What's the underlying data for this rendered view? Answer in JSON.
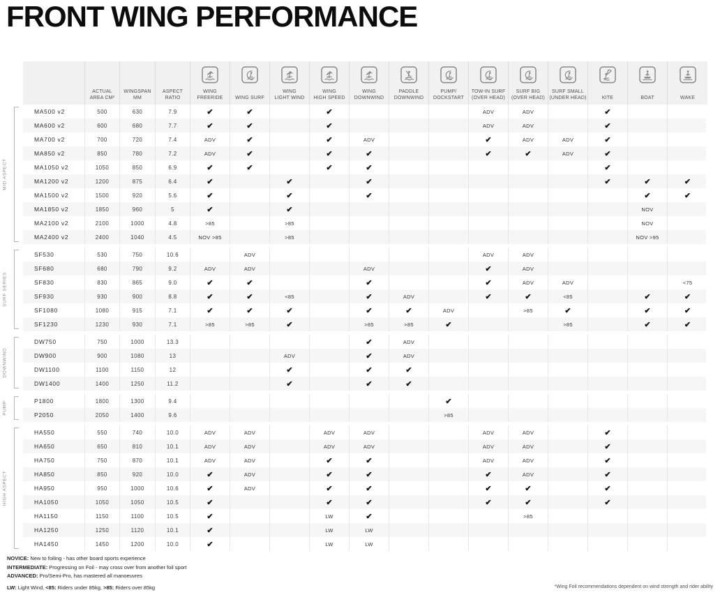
{
  "title": "FRONT WING PERFORMANCE",
  "colors": {
    "title": "#0c0c0c",
    "header_bg": "#f1f1f1",
    "row_stripe": "#f6f6f6",
    "grid_line": "#e6e6e6",
    "icon_gray": "#878787",
    "check": "#121212",
    "section_label": "#8d8d8d"
  },
  "table": {
    "numeric_columns": [
      {
        "lines": [
          "ACTUAL",
          "AREA CM²"
        ]
      },
      {
        "lines": [
          "WINGSPAN",
          "MM"
        ]
      },
      {
        "lines": [
          "ASPECT",
          "RATIO"
        ]
      }
    ],
    "discipline_columns": [
      {
        "lines": [
          "WING",
          "FREERIDE"
        ],
        "icon": "wing-freeride-icon"
      },
      {
        "lines": [
          "WING SURF"
        ],
        "icon": "wing-surf-icon"
      },
      {
        "lines": [
          "WING",
          "LIGHT WIND"
        ],
        "icon": "wing-light-wind-icon"
      },
      {
        "lines": [
          "WING",
          "HIGH SPEED"
        ],
        "icon": "wing-high-speed-icon"
      },
      {
        "lines": [
          "WING",
          "DOWNWIND"
        ],
        "icon": "wing-downwind-icon"
      },
      {
        "lines": [
          "PADDLE",
          "DOWNWIND"
        ],
        "icon": "paddle-downwind-icon"
      },
      {
        "lines": [
          "PUMP/",
          "DOCKSTART"
        ],
        "icon": "pump-dockstart-icon"
      },
      {
        "lines": [
          "TOW-IN SURF",
          "(OVER HEAD)"
        ],
        "icon": "tow-in-surf-icon"
      },
      {
        "lines": [
          "SURF BIG",
          "(OVER HEAD)"
        ],
        "icon": "surf-big-icon"
      },
      {
        "lines": [
          "SURF SMALL",
          "(UNDER HEAD)"
        ],
        "icon": "surf-small-icon"
      },
      {
        "lines": [
          "KITE"
        ],
        "icon": "kite-icon"
      },
      {
        "lines": [
          "BOAT"
        ],
        "icon": "boat-icon"
      },
      {
        "lines": [
          "WAKE"
        ],
        "icon": "wake-icon"
      }
    ],
    "sections": [
      {
        "label": "MID ASPECT",
        "rows": [
          {
            "model": "MA500 v2",
            "area": "500",
            "wingspan": "630",
            "aspect": "7.9",
            "cells": [
              "✔",
              "✔",
              "",
              "✔",
              "",
              "",
              "",
              "ADV",
              "ADV",
              "",
              "✔",
              "",
              ""
            ]
          },
          {
            "model": "MA600 v2",
            "area": "600",
            "wingspan": "680",
            "aspect": "7.7",
            "cells": [
              "✔",
              "✔",
              "",
              "✔",
              "",
              "",
              "",
              "ADV",
              "ADV",
              "",
              "✔",
              "",
              ""
            ]
          },
          {
            "model": "MA700 v2",
            "area": "700",
            "wingspan": "720",
            "aspect": "7.4",
            "cells": [
              "ADV",
              "✔",
              "",
              "✔",
              "ADV",
              "",
              "",
              "✔",
              "ADV",
              "ADV",
              "✔",
              "",
              ""
            ]
          },
          {
            "model": "MA850 v2",
            "area": "850",
            "wingspan": "780",
            "aspect": "7.2",
            "cells": [
              "ADV",
              "✔",
              "",
              "✔",
              "✔",
              "",
              "",
              "✔",
              "✔",
              "ADV",
              "✔",
              "",
              ""
            ]
          },
          {
            "model": "MA1050 v2",
            "area": "1050",
            "wingspan": "850",
            "aspect": "6.9",
            "cells": [
              "✔",
              "✔",
              "",
              "✔",
              "✔",
              "",
              "",
              "",
              "",
              "",
              "✔",
              "",
              ""
            ]
          },
          {
            "model": "MA1200 v2",
            "area": "1200",
            "wingspan": "875",
            "aspect": "6.4",
            "cells": [
              "✔",
              "",
              "✔",
              "",
              "✔",
              "",
              "",
              "",
              "",
              "",
              "✔",
              "✔",
              "✔"
            ]
          },
          {
            "model": "MA1500 v2",
            "area": "1500",
            "wingspan": "920",
            "aspect": "5.6",
            "cells": [
              "✔",
              "",
              "✔",
              "",
              "✔",
              "",
              "",
              "",
              "",
              "",
              "",
              "✔",
              "✔"
            ]
          },
          {
            "model": "MA1850 v2",
            "area": "1850",
            "wingspan": "960",
            "aspect": "5",
            "cells": [
              "✔",
              "",
              "✔",
              "",
              "",
              "",
              "",
              "",
              "",
              "",
              "",
              "NOV",
              ""
            ]
          },
          {
            "model": "MA2100 v2",
            "area": "2100",
            "wingspan": "1000",
            "aspect": "4.8",
            "cells": [
              ">85",
              "",
              ">85",
              "",
              "",
              "",
              "",
              "",
              "",
              "",
              "",
              "NOV",
              ""
            ]
          },
          {
            "model": "MA2400 v2",
            "area": "2400",
            "wingspan": "1040",
            "aspect": "4.5",
            "cells": [
              "NOV >85",
              "",
              ">85",
              "",
              "",
              "",
              "",
              "",
              "",
              "",
              "",
              "NOV >95",
              ""
            ]
          }
        ]
      },
      {
        "label": "SURF SERIES",
        "rows": [
          {
            "model": "SF530",
            "area": "530",
            "wingspan": "750",
            "aspect": "10.6",
            "cells": [
              "",
              "ADV",
              "",
              "",
              "",
              "",
              "",
              "ADV",
              "ADV",
              "",
              "",
              "",
              ""
            ]
          },
          {
            "model": "SF680",
            "area": "680",
            "wingspan": "790",
            "aspect": "9.2",
            "cells": [
              "ADV",
              "ADV",
              "",
              "",
              "ADV",
              "",
              "",
              "✔",
              "ADV",
              "",
              "",
              "",
              ""
            ]
          },
          {
            "model": "SF830",
            "area": "830",
            "wingspan": "865",
            "aspect": "9.0",
            "cells": [
              "✔",
              "✔",
              "",
              "",
              "✔",
              "",
              "",
              "✔",
              "ADV",
              "ADV",
              "",
              "",
              "<75"
            ]
          },
          {
            "model": "SF930",
            "area": "930",
            "wingspan": "900",
            "aspect": "8.8",
            "cells": [
              "✔",
              "✔",
              "<85",
              "",
              "✔",
              "ADV",
              "",
              "✔",
              "✔",
              "<85",
              "",
              "✔",
              "✔"
            ]
          },
          {
            "model": "SF1080",
            "area": "1080",
            "wingspan": "915",
            "aspect": "7.1",
            "cells": [
              "✔",
              "✔",
              "✔",
              "",
              "✔",
              "✔",
              "ADV",
              "",
              ">85",
              "✔",
              "",
              "✔",
              "✔"
            ]
          },
          {
            "model": "SF1230",
            "area": "1230",
            "wingspan": "930",
            "aspect": "7.1",
            "cells": [
              ">85",
              ">85",
              "✔",
              "",
              ">85",
              ">85",
              "✔",
              "",
              "",
              ">85",
              "",
              "✔",
              "✔"
            ]
          }
        ]
      },
      {
        "label": "DOWNWIND",
        "rows": [
          {
            "model": "DW750",
            "area": "750",
            "wingspan": "1000",
            "aspect": "13.3",
            "cells": [
              "",
              "",
              "",
              "",
              "✔",
              "ADV",
              "",
              "",
              "",
              "",
              "",
              "",
              ""
            ]
          },
          {
            "model": "DW900",
            "area": "900",
            "wingspan": "1080",
            "aspect": "13",
            "cells": [
              "",
              "",
              "ADV",
              "",
              "✔",
              "ADV",
              "",
              "",
              "",
              "",
              "",
              "",
              ""
            ]
          },
          {
            "model": "DW1100",
            "area": "1100",
            "wingspan": "1150",
            "aspect": "12",
            "cells": [
              "",
              "",
              "✔",
              "",
              "✔",
              "✔",
              "",
              "",
              "",
              "",
              "",
              "",
              ""
            ]
          },
          {
            "model": "DW1400",
            "area": "1400",
            "wingspan": "1250",
            "aspect": "11.2",
            "cells": [
              "",
              "",
              "✔",
              "",
              "✔",
              "✔",
              "",
              "",
              "",
              "",
              "",
              "",
              ""
            ]
          }
        ]
      },
      {
        "label": "PUMP",
        "rows": [
          {
            "model": "P1800",
            "area": "1800",
            "wingspan": "1300",
            "aspect": "9.4",
            "cells": [
              "",
              "",
              "",
              "",
              "",
              "",
              "✔",
              "",
              "",
              "",
              "",
              "",
              ""
            ]
          },
          {
            "model": "P2050",
            "area": "2050",
            "wingspan": "1400",
            "aspect": "9.6",
            "cells": [
              "",
              "",
              "",
              "",
              "",
              "",
              ">85",
              "",
              "",
              "",
              "",
              "",
              ""
            ]
          }
        ]
      },
      {
        "label": "HIGH ASPECT",
        "rows": [
          {
            "model": "HA550",
            "area": "550",
            "wingspan": "740",
            "aspect": "10.0",
            "cells": [
              "ADV",
              "ADV",
              "",
              "ADV",
              "ADV",
              "",
              "",
              "ADV",
              "ADV",
              "",
              "✔",
              "",
              ""
            ]
          },
          {
            "model": "HA650",
            "area": "650",
            "wingspan": "810",
            "aspect": "10.1",
            "cells": [
              "ADV",
              "ADV",
              "",
              "ADV",
              "ADV",
              "",
              "",
              "ADV",
              "ADV",
              "",
              "✔",
              "",
              ""
            ]
          },
          {
            "model": "HA750",
            "area": "750",
            "wingspan": "870",
            "aspect": "10.1",
            "cells": [
              "ADV",
              "ADV",
              "",
              "✔",
              "✔",
              "",
              "",
              "ADV",
              "ADV",
              "",
              "✔",
              "",
              ""
            ]
          },
          {
            "model": "HA850",
            "area": "850",
            "wingspan": "920",
            "aspect": "10.0",
            "cells": [
              "✔",
              "ADV",
              "",
              "✔",
              "✔",
              "",
              "",
              "✔",
              "ADV",
              "",
              "✔",
              "",
              ""
            ]
          },
          {
            "model": "HA950",
            "area": "950",
            "wingspan": "1000",
            "aspect": "10.6",
            "cells": [
              "✔",
              "ADV",
              "",
              "✔",
              "✔",
              "",
              "",
              "✔",
              "✔",
              "",
              "✔",
              "",
              ""
            ]
          },
          {
            "model": "HA1050",
            "area": "1050",
            "wingspan": "1050",
            "aspect": "10.5",
            "cells": [
              "✔",
              "",
              "",
              "✔",
              "✔",
              "",
              "",
              "✔",
              "✔",
              "",
              "✔",
              "",
              ""
            ]
          },
          {
            "model": "HA1150",
            "area": "1150",
            "wingspan": "1100",
            "aspect": "10.5",
            "cells": [
              "✔",
              "",
              "",
              "LW",
              "✔",
              "",
              "",
              "",
              ">85",
              "",
              "",
              "",
              ""
            ]
          },
          {
            "model": "HA1250",
            "area": "1250",
            "wingspan": "1120",
            "aspect": "10.1",
            "cells": [
              "✔",
              "",
              "",
              "LW",
              "LW",
              "",
              "",
              "",
              "",
              "",
              "",
              "",
              ""
            ]
          },
          {
            "model": "HA1450",
            "area": "1450",
            "wingspan": "1200",
            "aspect": "10.0",
            "cells": [
              "✔",
              "",
              "",
              "LW",
              "LW",
              "",
              "",
              "",
              "",
              "",
              "",
              "",
              ""
            ]
          }
        ]
      }
    ]
  },
  "footnotes": {
    "definitions": [
      [
        {
          "text": "NOVICE:",
          "bold": true
        },
        {
          "text": " New to foiling - has other board sports experience",
          "bold": false
        }
      ],
      [
        {
          "text": "INTERMEDIATE:",
          "bold": true
        },
        {
          "text": " Progressing on Foil - may cross over from another foil sport",
          "bold": false
        }
      ],
      [
        {
          "text": "ADVANCED:",
          "bold": true
        },
        {
          "text": " Pro/Semi-Pro, has mastered all manoeuvres",
          "bold": false
        }
      ]
    ],
    "legend": [
      {
        "text": "LW:",
        "bold": true
      },
      {
        "text": " Light Wind, ",
        "bold": false
      },
      {
        "text": "<85:",
        "bold": true
      },
      {
        "text": " Riders under 85kg, ",
        "bold": false
      },
      {
        "text": ">85:",
        "bold": true
      },
      {
        "text": " Riders over 85kg",
        "bold": false
      }
    ],
    "right_note": "*Wing Foil recommendations dependent on wind strength and rider ability"
  }
}
